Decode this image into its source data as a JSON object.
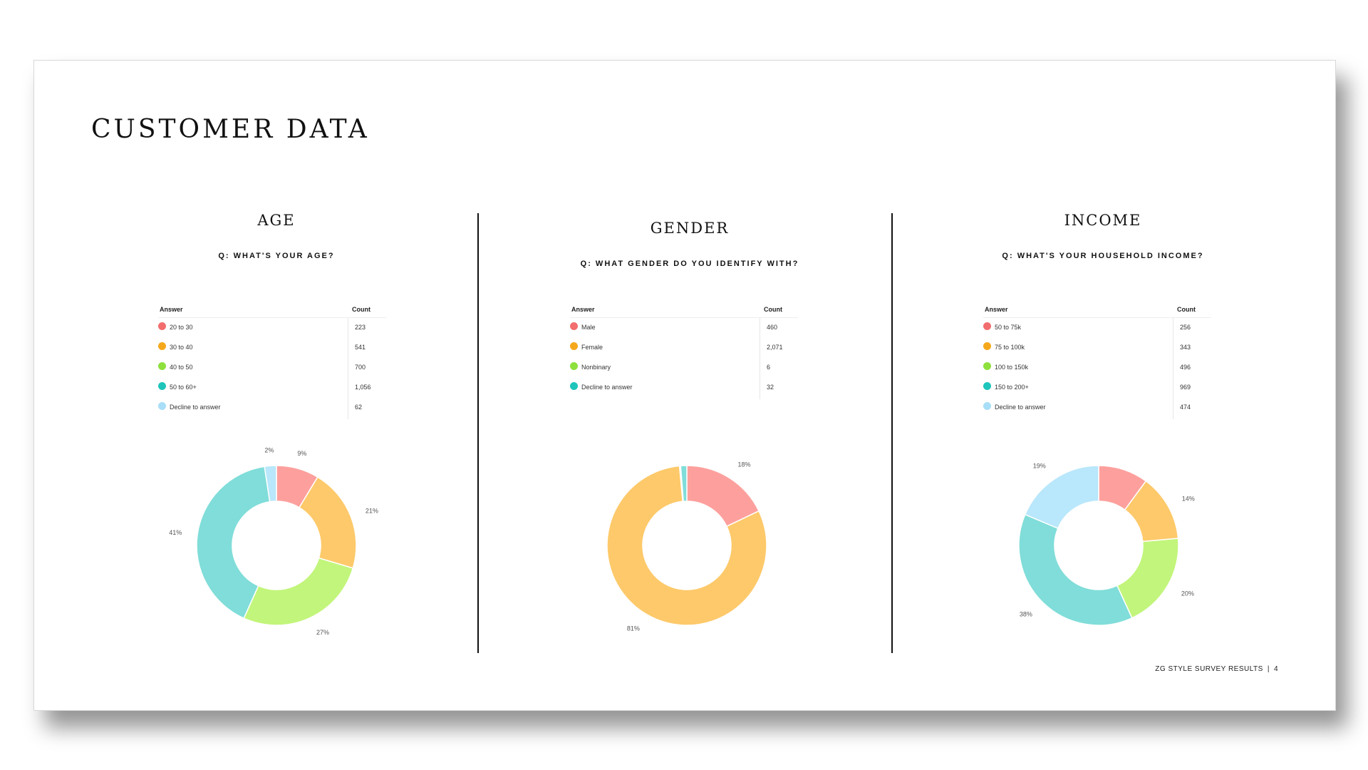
{
  "page": {
    "title": "CUSTOMER DATA",
    "footer_label": "ZG STYLE SURVEY RESULTS",
    "footer_separator": "|",
    "page_number": "4"
  },
  "sections": [
    {
      "title": "AGE",
      "question": "Q: WHAT'S YOUR AGE?",
      "table": {
        "answer_header": "Answer",
        "count_header": "Count",
        "rows": [
          {
            "label": "20 to 30",
            "count": "223",
            "dot_color": "#f26d6d"
          },
          {
            "label": "30 to 40",
            "count": "541",
            "dot_color": "#f5a81c"
          },
          {
            "label": "40 to 50",
            "count": "700",
            "dot_color": "#8ee03c"
          },
          {
            "label": "50 to 60+",
            "count": "1,056",
            "dot_color": "#1fc4bb"
          },
          {
            "label": "Decline to answer",
            "count": "62",
            "dot_color": "#a8def7"
          }
        ]
      }
    },
    {
      "title": "GENDER",
      "question": "Q: WHAT GENDER DO YOU IDENTIFY WITH?",
      "table": {
        "answer_header": "Answer",
        "count_header": "Count",
        "rows": [
          {
            "label": "Male",
            "count": "460",
            "dot_color": "#f26d6d"
          },
          {
            "label": "Female",
            "count": "2,071",
            "dot_color": "#f5a81c"
          },
          {
            "label": "Nonbinary",
            "count": "6",
            "dot_color": "#8ee03c"
          },
          {
            "label": "Decline to answer",
            "count": "32",
            "dot_color": "#1fc4bb"
          }
        ]
      }
    },
    {
      "title": "INCOME",
      "question": "Q: WHAT'S YOUR HOUSEHOLD INCOME?",
      "table": {
        "answer_header": "Answer",
        "count_header": "Count",
        "rows": [
          {
            "label": "50 to 75k",
            "count": "256",
            "dot_color": "#f26d6d"
          },
          {
            "label": "75 to 100k",
            "count": "343",
            "dot_color": "#f5a81c"
          },
          {
            "label": "100 to 150k",
            "count": "496",
            "dot_color": "#8ee03c"
          },
          {
            "label": "150 to 200+",
            "count": "969",
            "dot_color": "#1fc4bb"
          },
          {
            "label": "Decline to answer",
            "count": "474",
            "dot_color": "#a8def7"
          }
        ]
      }
    }
  ],
  "chart_data": [
    {
      "type": "pie",
      "style": "donut",
      "categories": [
        "20 to 30",
        "30 to 40",
        "40 to 50",
        "50 to 60+",
        "Decline to answer"
      ],
      "values": [
        223,
        541,
        700,
        1056,
        62
      ],
      "slice_labels": [
        "9%",
        "21%",
        "27%",
        "41%",
        "2%"
      ],
      "colors": [
        "#fda09d",
        "#fdc96a",
        "#c2f57b",
        "#80ddd9",
        "#b9e7fb"
      ]
    },
    {
      "type": "pie",
      "style": "donut",
      "categories": [
        "Male",
        "Female",
        "Nonbinary",
        "Decline to answer"
      ],
      "values": [
        460,
        2071,
        6,
        32
      ],
      "slice_labels": [
        "18%",
        "81%",
        "",
        ""
      ],
      "colors": [
        "#fda09d",
        "#fdc96a",
        "#c2f57b",
        "#80ddd9"
      ]
    },
    {
      "type": "pie",
      "style": "donut",
      "categories": [
        "50 to 75k",
        "75 to 100k",
        "100 to 150k",
        "150 to 200+",
        "Decline to answer"
      ],
      "values": [
        256,
        343,
        496,
        969,
        474
      ],
      "slice_labels": [
        "",
        "14%",
        "20%",
        "38%",
        "19%"
      ],
      "colors": [
        "#fda09d",
        "#fdc96a",
        "#c2f57b",
        "#80ddd9",
        "#b9e7fb"
      ]
    }
  ]
}
